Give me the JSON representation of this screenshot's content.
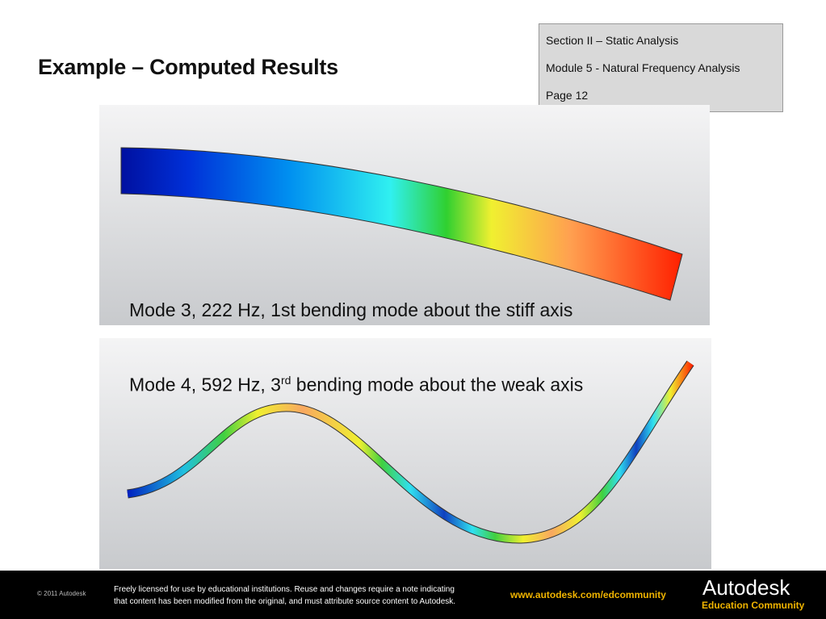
{
  "header": {
    "title": "Example – Computed Results"
  },
  "section_box": {
    "lines": [
      "Section II – Static Analysis",
      "Module 5 - Natural Frequency Analysis",
      "Page 12"
    ]
  },
  "panels": [
    {
      "caption": "Mode 3, 222 Hz, 1st bending mode about the stiff axis"
    },
    {
      "caption_parts": [
        "Mode 4, 592 Hz, 3",
        "rd",
        " bending mode about the weak axis"
      ]
    }
  ],
  "footer": {
    "copyright": "© 2011 Autodesk",
    "license_lines": [
      "Freely licensed for use by educational institutions. Reuse and changes require a note indicating",
      "that content has been modified from the original, and must attribute source content to Autodesk."
    ],
    "url": "www.autodesk.com/edcommunity",
    "brand": "Autodesk",
    "brand_sub": "Education Community"
  }
}
